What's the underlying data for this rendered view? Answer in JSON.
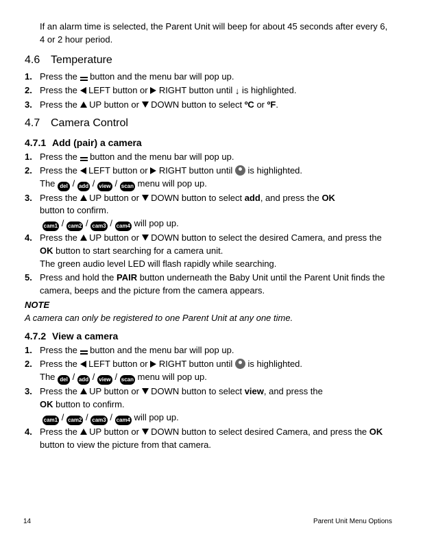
{
  "intro": "If an alarm time is selected, the Parent Unit will beep for about 45 seconds after every 6, 4 or 2 hour period.",
  "s46": {
    "num": "4.6",
    "title": "Temperature"
  },
  "s46_items": {
    "i1a": "Press the ",
    "i1b": " button and the menu bar will pop up.",
    "i2a": "Press the ",
    "i2b": " LEFT button or ",
    "i2c": " RIGHT button until ",
    "i2d": " is highlighted.",
    "i3a": "Press the ",
    "i3b": " UP button or ",
    "i3c": " DOWN button to select ",
    "i3d": " or ",
    "i3e": ".",
    "c": "ºC",
    "f": "ºF",
    "down": "↓"
  },
  "s47": {
    "num": "4.7",
    "title": "Camera Control"
  },
  "s471": {
    "num": "4.7.1",
    "title": "Add (pair) a camera"
  },
  "s471_items": {
    "i1a": "Press the ",
    "i1b": " button and the menu bar will pop up.",
    "i2a": "Press the ",
    "i2b": " LEFT button or ",
    "i2c": " RIGHT button until ",
    "i2d": " is highlighted.",
    "i2e": "The ",
    "i2f": " menu will pop up.",
    "i3a": "Press the ",
    "i3b": " UP button or ",
    "i3c": " DOWN button to select ",
    "add": "add",
    "i3d": ", and press the ",
    "i3e": " button to confirm.",
    "i3f": " will pop up.",
    "i4a": "Press the ",
    "i4b": " UP button or ",
    "i4c": " DOWN button to select the desired Camera, and press the ",
    "i4d": " button to start searching for a camera unit.",
    "i4e": "The green audio level LED will flash rapidly while searching.",
    "i5a": "Press and hold the ",
    "pair": "PAIR",
    "i5b": " button underneath the Baby Unit until the Parent Unit finds the camera, beeps and the picture from the camera appears.",
    "ok": "OK",
    "del": "del",
    "addp": "add",
    "view": "view",
    "scan": "scan",
    "c1": "cam1",
    "c2": "cam2",
    "c3": "cam3",
    "c4": "cam4",
    "slash": " / "
  },
  "note": {
    "label": "NOTE",
    "text": "A camera can only be registered to one Parent Unit at any one time."
  },
  "s472": {
    "num": "4.7.2",
    "title": "View a camera"
  },
  "s472_items": {
    "i1a": "Press the ",
    "i1b": " button and the menu bar will pop up.",
    "i2a": "Press the ",
    "i2b": " LEFT button or ",
    "i2c": " RIGHT button until ",
    "i2d": " is highlighted.",
    "i2e": "The ",
    "i2f": " menu will pop up.",
    "i3a": "Press the ",
    "i3b": " UP button or ",
    "i3c": " DOWN button to select ",
    "view": "view",
    "i3d": ", and press the",
    "i3e": " button to confirm.",
    "i3f": " will pop up.",
    "i4a": "Press the ",
    "i4b": " UP button or ",
    "i4c": " DOWN button to select desired Camera, and press the ",
    "i4d": " button to view the picture from that camera.",
    "ok": "OK",
    "del": "del",
    "addp": "add",
    "viewp": "view",
    "scan": "scan",
    "c1": "cam1",
    "c2": "cam2",
    "c3": "cam3",
    "c4": "cam4",
    "slash": " / "
  },
  "footer": {
    "page": "14",
    "title": "Parent Unit Menu Options"
  }
}
